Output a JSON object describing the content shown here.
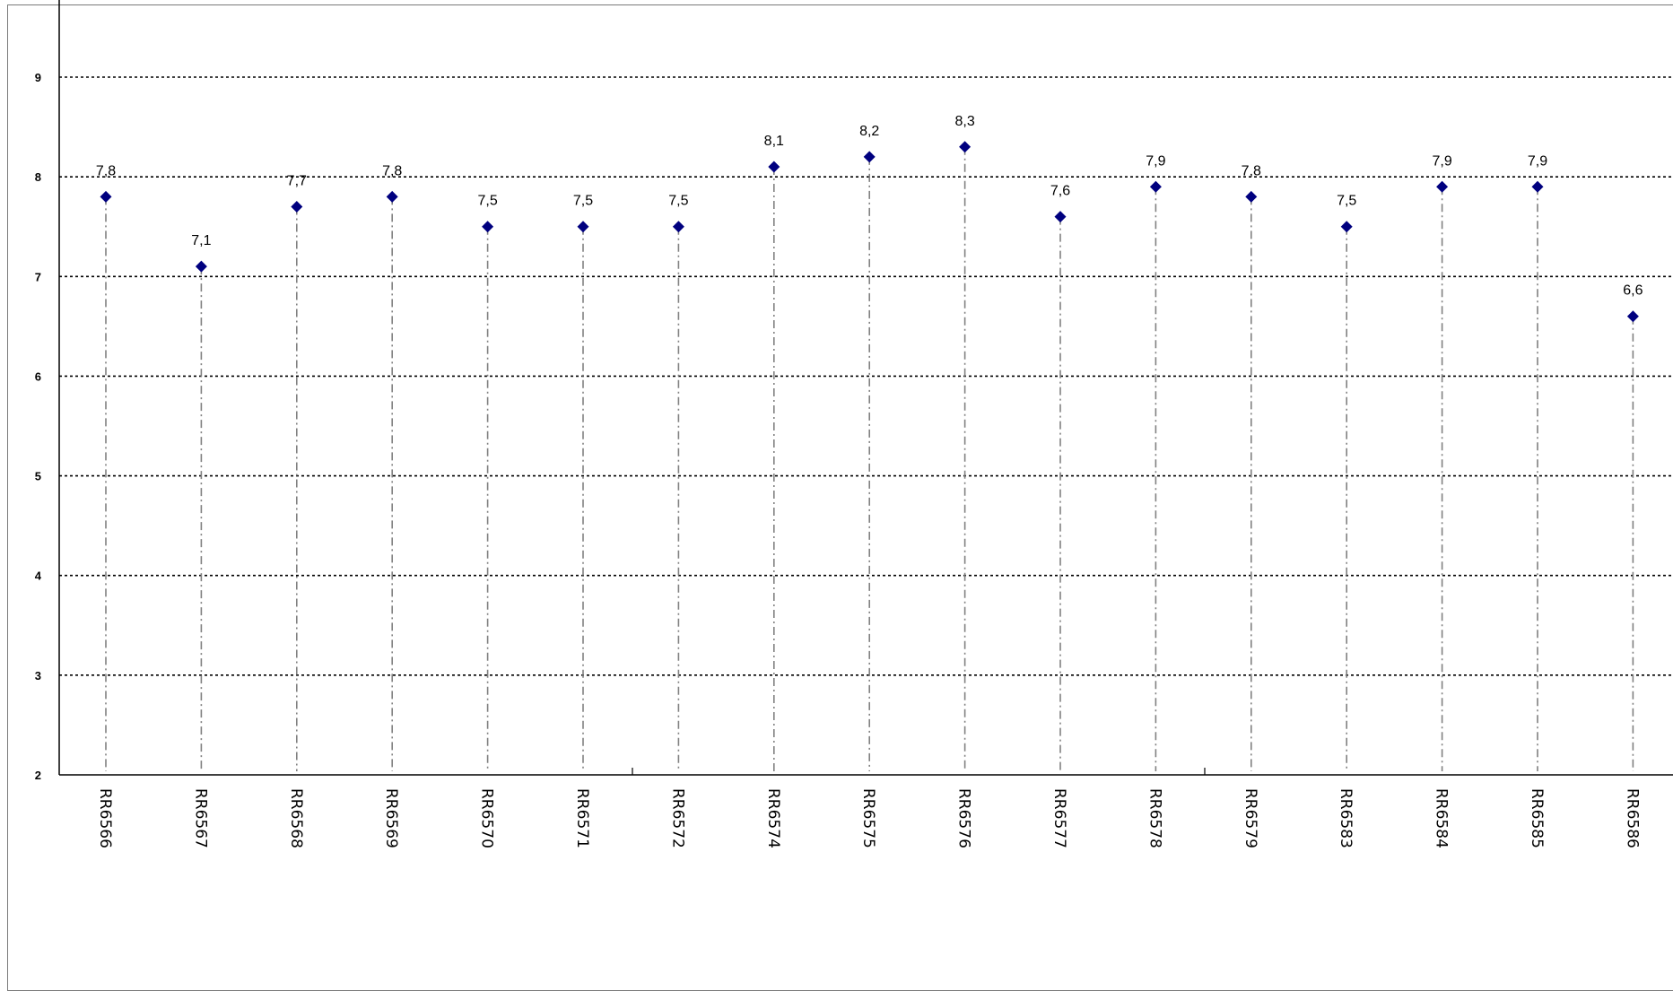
{
  "chart_data": {
    "type": "scatter",
    "title": "",
    "xlabel": "",
    "ylabel": "",
    "ylim": [
      2,
      9.9
    ],
    "yticks": [
      "2",
      "3",
      "4",
      "5",
      "6",
      "7",
      "8",
      "9"
    ],
    "grid": "horizontal dotted",
    "drop_lines": true,
    "marker": "diamond",
    "colors": {
      "marker": "#00007f",
      "grid": "#000000",
      "drop_line": "#808080",
      "axis": "#000000"
    },
    "categories": [
      "RR6566",
      "RR6567",
      "RR6568",
      "RR6569",
      "RR6570",
      "RR6571",
      "RR6572",
      "RR6574",
      "RR6575",
      "RR6576",
      "RR6577",
      "RR6578",
      "RR6579",
      "RR6583",
      "RR6584",
      "RR6585",
      "RR6586"
    ],
    "values": [
      7.8,
      7.1,
      7.7,
      7.8,
      7.5,
      7.5,
      7.5,
      8.1,
      8.2,
      8.3,
      7.6,
      7.9,
      7.8,
      7.5,
      7.9,
      7.9,
      6.6
    ],
    "data_labels": [
      "7,8",
      "7,1",
      "7,7",
      "7,8",
      "7,5",
      "7,5",
      "7,5",
      "8,1",
      "8,2",
      "8,3",
      "7,6",
      "7,9",
      "7,8",
      "7,5",
      "7,9",
      "7,9",
      "6,6"
    ]
  }
}
